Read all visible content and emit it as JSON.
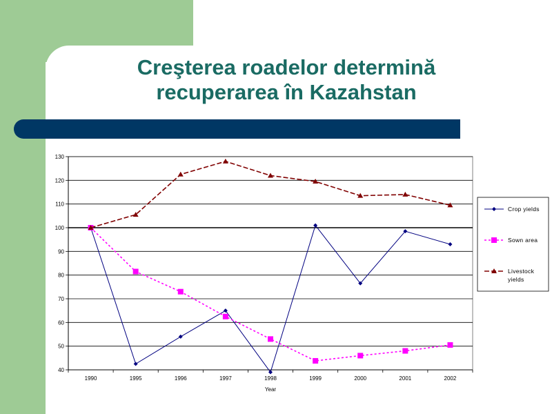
{
  "slide": {
    "title_line1": "Creşterea roadelor determină",
    "title_line2": "recuperarea în Kazahstan"
  },
  "chart_data": {
    "type": "line",
    "categories": [
      "1990",
      "1995",
      "1996",
      "1997",
      "1998",
      "1999",
      "2000",
      "2001",
      "2002"
    ],
    "ylim": [
      40,
      130
    ],
    "yticks": [
      40,
      50,
      60,
      70,
      80,
      90,
      100,
      110,
      120,
      130
    ],
    "xlabel": "Year",
    "ylabel": "",
    "grid": true,
    "legend_position": "right",
    "series": [
      {
        "name": "Crop yields",
        "color": "#000080",
        "style": "solid",
        "marker": "diamond",
        "values": [
          100,
          42.5,
          54,
          65,
          39,
          101,
          76.5,
          98.5,
          93
        ]
      },
      {
        "name": "Sown area",
        "color": "#ff00ff",
        "style": "dotted",
        "marker": "square",
        "values": [
          100,
          81.5,
          73,
          62.5,
          53,
          43.8,
          46,
          48,
          50.5
        ]
      },
      {
        "name": "Livestock yields",
        "color": "#800000",
        "style": "dashed",
        "marker": "triangle",
        "values": [
          100,
          105.5,
          122.5,
          128,
          122,
          119.5,
          113.5,
          114,
          109.5
        ]
      }
    ]
  }
}
